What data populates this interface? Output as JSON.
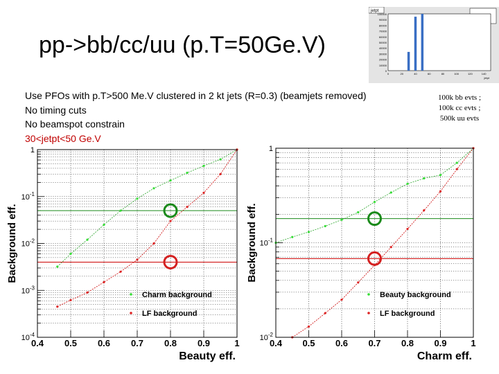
{
  "slide": {
    "title": "pp->bb/cc/uu (p.T=50Ge.V)",
    "notes": [
      "Use PFOs with p.T>500 Me.V clustered in 2 kt jets (R=0.3) (beamjets removed)",
      "No timing cuts",
      "No beamspot constrain"
    ],
    "cut_note": "30<jetpt<50 Ge.V",
    "sample_note": [
      "100k bb evts ;",
      "100k cc evts ;",
      "500k uu evts"
    ]
  },
  "colors": {
    "charm": "#2aa52a",
    "charm_marker": "#35dd35",
    "lf": "#cc0000",
    "lf_marker": "#dd2222",
    "hline_green": "#1a8a1a",
    "hline_red": "#cc0000",
    "circle_green": "#1a8a1a",
    "circle_red": "#d42020",
    "thumb_bar": "#3a6fc4"
  },
  "chart_data": [
    {
      "type": "histogram",
      "title": "jetpt",
      "xlabel": "jetpt",
      "bars": [
        {
          "x": 30,
          "value": 33000
        },
        {
          "x": 40,
          "value": 95000
        },
        {
          "x": 50,
          "value": 100000
        }
      ],
      "ylim": [
        0,
        100000
      ]
    },
    {
      "type": "line",
      "xlabel": "Beauty eff.",
      "ylabel": "Background eff.",
      "xlim": [
        0.4,
        1.0
      ],
      "ylim": [
        0.0001,
        1
      ],
      "ylog": true,
      "x_ticks": [
        "0.4",
        "0.5",
        "0.6",
        "0.7",
        "0.8",
        "0.9",
        "1"
      ],
      "y_ticks": [
        "10^{-4}",
        "10^{-3}",
        "10^{-2}",
        "10^{-1}",
        "1"
      ],
      "grid": true,
      "legend_position": "bottom-right",
      "series": [
        {
          "name": "Charm background",
          "points": [
            [
              0.46,
              0.0032
            ],
            [
              0.5,
              0.006
            ],
            [
              0.55,
              0.012
            ],
            [
              0.6,
              0.025
            ],
            [
              0.65,
              0.05
            ],
            [
              0.7,
              0.09
            ],
            [
              0.75,
              0.15
            ],
            [
              0.8,
              0.22
            ],
            [
              0.85,
              0.32
            ],
            [
              0.9,
              0.45
            ],
            [
              0.95,
              0.62
            ],
            [
              1.0,
              1.0
            ]
          ]
        },
        {
          "name": "LF background",
          "points": [
            [
              0.46,
              0.00045
            ],
            [
              0.5,
              0.00062
            ],
            [
              0.55,
              0.0009
            ],
            [
              0.6,
              0.0015
            ],
            [
              0.65,
              0.0025
            ],
            [
              0.7,
              0.0045
            ],
            [
              0.75,
              0.01
            ],
            [
              0.8,
              0.03
            ],
            [
              0.85,
              0.06
            ],
            [
              0.9,
              0.12
            ],
            [
              0.95,
              0.3
            ],
            [
              1.0,
              1.0
            ]
          ]
        }
      ],
      "reference_lines": [
        {
          "y": 0.05,
          "color": "green"
        },
        {
          "y": 0.004,
          "color": "red"
        }
      ],
      "marked_points": [
        {
          "x": 0.8,
          "y": 0.05,
          "color": "green"
        },
        {
          "x": 0.8,
          "y": 0.004,
          "color": "red"
        }
      ]
    },
    {
      "type": "line",
      "xlabel": "Charm eff.",
      "ylabel": "Background eff.",
      "xlim": [
        0.4,
        1.0
      ],
      "ylim": [
        0.01,
        1
      ],
      "ylog": true,
      "x_ticks": [
        "0.4",
        "0.5",
        "0.6",
        "0.7",
        "0.8",
        "0.9",
        "1"
      ],
      "y_ticks": [
        "10^{-2}",
        "10^{-1}",
        "1"
      ],
      "grid": true,
      "legend_position": "bottom-right",
      "series": [
        {
          "name": "Beauty background",
          "points": [
            [
              0.4,
              0.1
            ],
            [
              0.45,
              0.115
            ],
            [
              0.5,
              0.13
            ],
            [
              0.55,
              0.15
            ],
            [
              0.6,
              0.175
            ],
            [
              0.65,
              0.21
            ],
            [
              0.7,
              0.27
            ],
            [
              0.75,
              0.34
            ],
            [
              0.8,
              0.42
            ],
            [
              0.85,
              0.48
            ],
            [
              0.9,
              0.52
            ],
            [
              0.95,
              0.7
            ],
            [
              1.0,
              1.0
            ]
          ]
        },
        {
          "name": "LF background",
          "points": [
            [
              0.45,
              0.01
            ],
            [
              0.5,
              0.013
            ],
            [
              0.55,
              0.018
            ],
            [
              0.6,
              0.025
            ],
            [
              0.65,
              0.038
            ],
            [
              0.7,
              0.058
            ],
            [
              0.75,
              0.09
            ],
            [
              0.8,
              0.14
            ],
            [
              0.85,
              0.22
            ],
            [
              0.9,
              0.35
            ],
            [
              0.95,
              0.6
            ],
            [
              1.0,
              1.0
            ]
          ]
        }
      ],
      "reference_lines": [
        {
          "y": 0.18,
          "color": "green"
        },
        {
          "y": 0.068,
          "color": "red"
        }
      ],
      "marked_points": [
        {
          "x": 0.7,
          "y": 0.18,
          "color": "green"
        },
        {
          "x": 0.7,
          "y": 0.068,
          "color": "red"
        }
      ]
    }
  ]
}
